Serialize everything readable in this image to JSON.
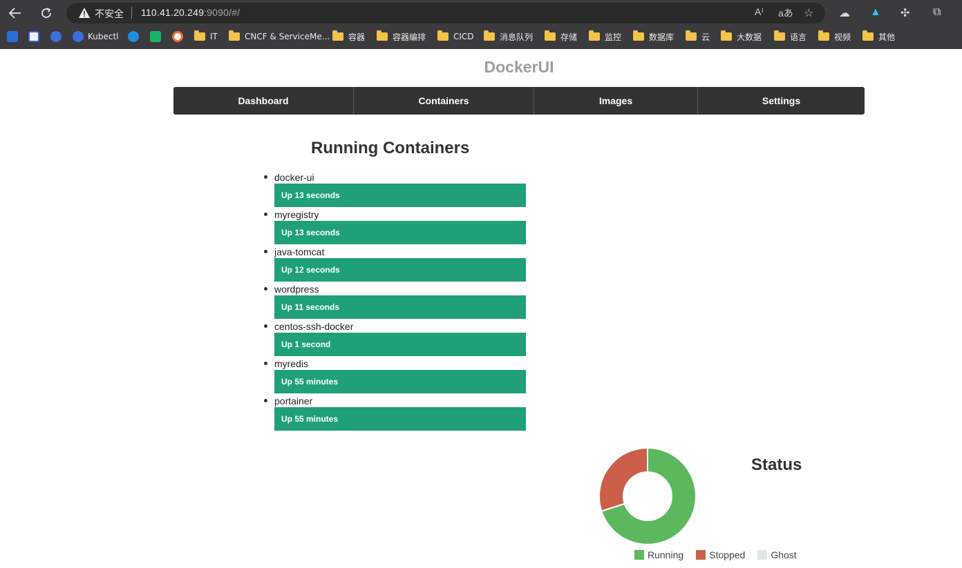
{
  "browser": {
    "security_label": "不安全",
    "url_host": "110.41.20.249",
    "url_rest": ":9090/#/",
    "bookmarks": [
      {
        "label": "Kubectl",
        "type": "site"
      },
      {
        "label": "IT",
        "type": "folder"
      },
      {
        "label": "CNCF & ServiceMe...",
        "type": "folder"
      },
      {
        "label": "容器",
        "type": "folder"
      },
      {
        "label": "容器编排",
        "type": "folder"
      },
      {
        "label": "CICD",
        "type": "folder"
      },
      {
        "label": "消息队列",
        "type": "folder"
      },
      {
        "label": "存储",
        "type": "folder"
      },
      {
        "label": "监控",
        "type": "folder"
      },
      {
        "label": "数据库",
        "type": "folder"
      },
      {
        "label": "云",
        "type": "folder"
      },
      {
        "label": "大数据",
        "type": "folder"
      },
      {
        "label": "语言",
        "type": "folder"
      },
      {
        "label": "视频",
        "type": "folder"
      },
      {
        "label": "其他",
        "type": "folder"
      }
    ]
  },
  "app": {
    "brand": "DockerUI",
    "nav": [
      "Dashboard",
      "Containers",
      "Images",
      "Settings"
    ]
  },
  "running": {
    "title": "Running Containers",
    "containers": [
      {
        "name": "docker-ui",
        "status": "Up 13 seconds"
      },
      {
        "name": "myregistry",
        "status": "Up 13 seconds"
      },
      {
        "name": "java-tomcat",
        "status": "Up 12 seconds"
      },
      {
        "name": "wordpress",
        "status": "Up 11 seconds"
      },
      {
        "name": "centos-ssh-docker",
        "status": "Up 1 second"
      },
      {
        "name": "myredis",
        "status": "Up 55 minutes"
      },
      {
        "name": "portainer",
        "status": "Up 55 minutes"
      }
    ],
    "bar_color": "#1fa078"
  },
  "status": {
    "title": "Status",
    "chart_data": {
      "type": "pie",
      "categories": [
        "Running",
        "Stopped",
        "Ghost"
      ],
      "values": [
        7,
        3,
        0
      ],
      "colors": [
        "#5cb85c",
        "#cc5f4a",
        "#dfe8e6"
      ],
      "legend": "bottom"
    }
  }
}
